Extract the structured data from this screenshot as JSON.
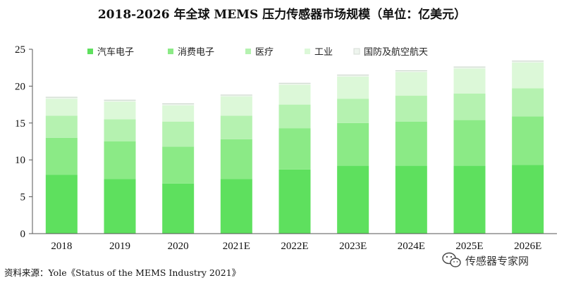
{
  "chart_data": {
    "type": "bar",
    "stacked": true,
    "title": "2018-2026 年全球 MEMS 压力传感器市场规模（单位：亿美元）",
    "categories": [
      "2018",
      "2019",
      "2020",
      "2021E",
      "2022E",
      "2023E",
      "2024E",
      "2025E",
      "2026E"
    ],
    "series": [
      {
        "name": "汽车电子",
        "color": "#5ee05e",
        "values": [
          8.0,
          7.4,
          6.8,
          7.4,
          8.7,
          9.2,
          9.2,
          9.2,
          9.3
        ]
      },
      {
        "name": "消费电子",
        "color": "#8bea86",
        "values": [
          5.0,
          5.1,
          5.0,
          5.4,
          5.6,
          5.8,
          6.0,
          6.2,
          6.6
        ]
      },
      {
        "name": "医疗",
        "color": "#b5f2b0",
        "values": [
          3.0,
          3.0,
          3.4,
          3.2,
          3.2,
          3.3,
          3.5,
          3.6,
          3.8
        ]
      },
      {
        "name": "工业",
        "color": "#dcf8d8",
        "values": [
          2.3,
          2.4,
          2.2,
          2.6,
          2.7,
          3.0,
          3.2,
          3.4,
          3.5
        ]
      },
      {
        "name": "国防及航空航天",
        "color": "#eef5ee",
        "values": [
          0.2,
          0.2,
          0.2,
          0.2,
          0.2,
          0.2,
          0.2,
          0.2,
          0.2
        ]
      }
    ],
    "ylim": [
      0,
      25
    ],
    "yticks": [
      0,
      5,
      10,
      15,
      20,
      25
    ],
    "legend_position": "top",
    "grid": false
  },
  "source": "资料来源：Yole《Status of the MEMS Industry 2021》",
  "watermark": "传感器专家网",
  "watermark_icon": "wechat-icon"
}
